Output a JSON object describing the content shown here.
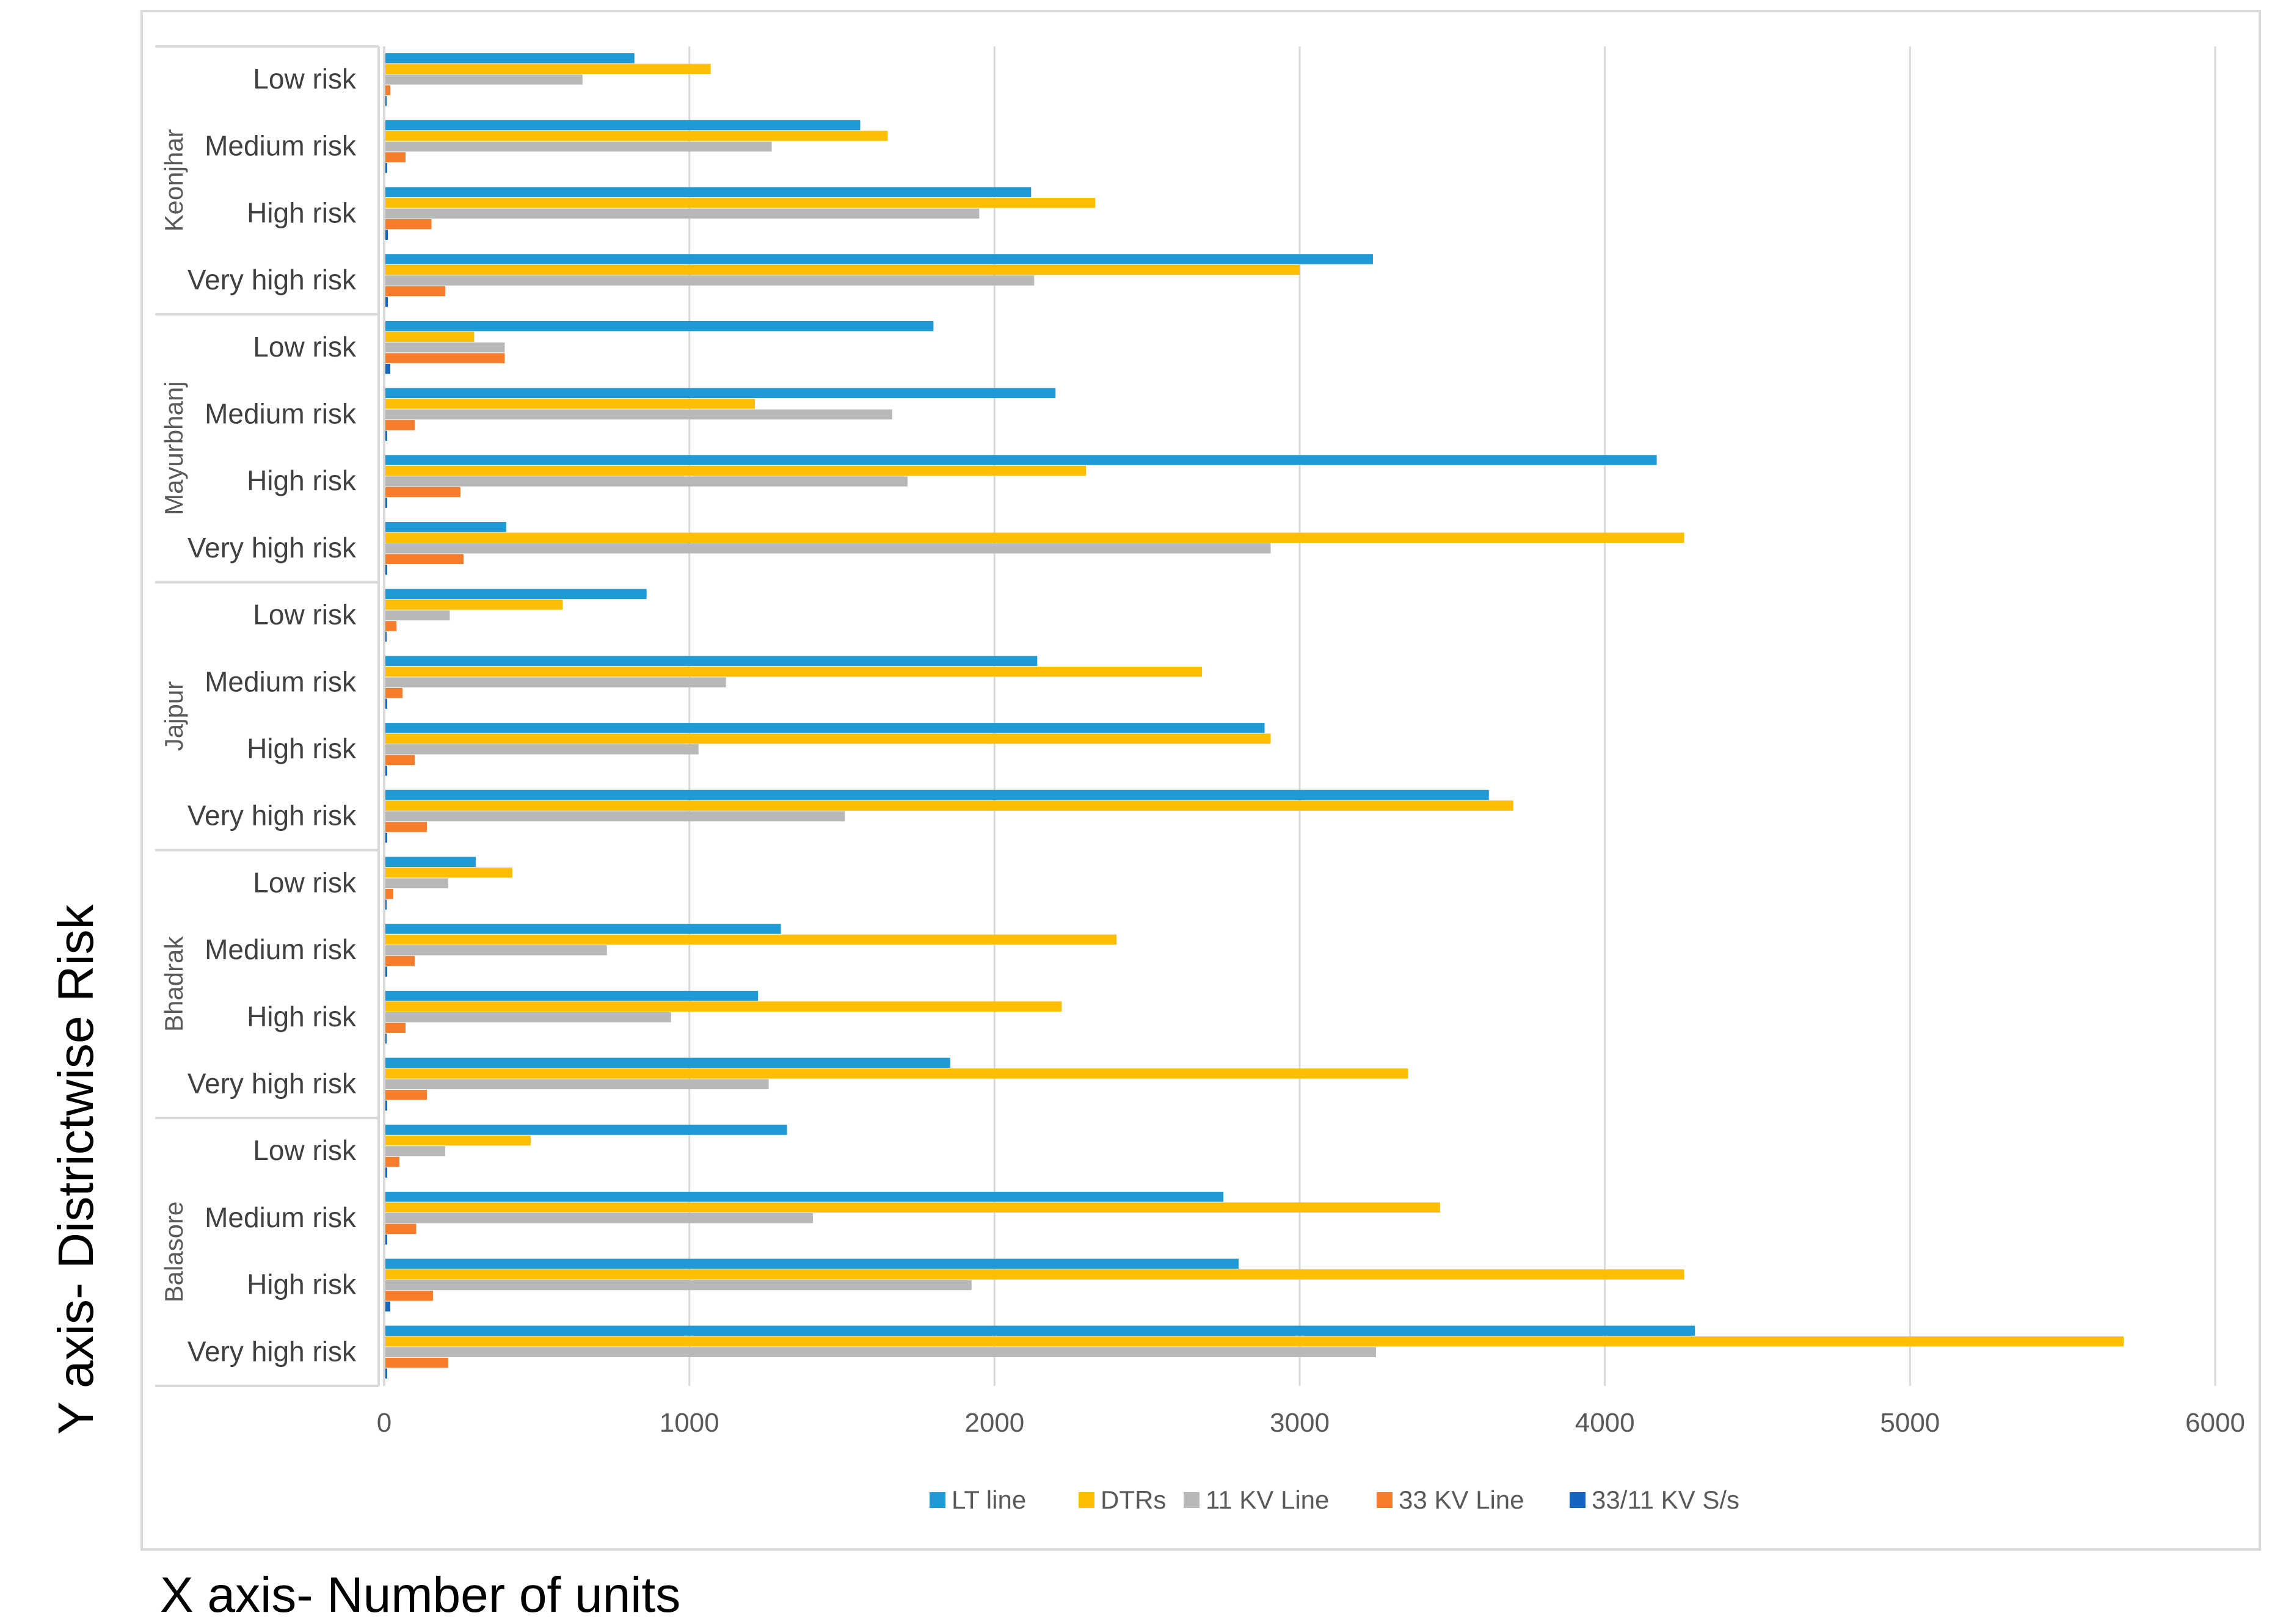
{
  "chart_data": {
    "type": "bar",
    "orientation": "horizontal",
    "xlabel": "X axis- Number of units",
    "ylabel": "Y axis- Districtwise Risk",
    "xlim": [
      0,
      6000
    ],
    "xticks": [
      0,
      1000,
      2000,
      3000,
      4000,
      5000,
      6000
    ],
    "grid": true,
    "legend_position": "bottom",
    "categories": [
      "Low risk",
      "Medium risk",
      "High risk",
      "Very high risk"
    ],
    "groups": [
      {
        "name": "Keonjhar",
        "series": [
          {
            "name": "LT line",
            "values": [
              820,
              1560,
              2120,
              3240
            ]
          },
          {
            "name": "DTRs",
            "values": [
              1070,
              1650,
              2330,
              3000
            ]
          },
          {
            "name": "11 KV Line",
            "values": [
              650,
              1270,
              1950,
              2130
            ]
          },
          {
            "name": "33 KV Line",
            "values": [
              20,
              70,
              155,
              200
            ]
          },
          {
            "name": "33/11 KV S/s",
            "values": [
              8,
              10,
              12,
              12
            ]
          }
        ]
      },
      {
        "name": "Mayurbhanj",
        "series": [
          {
            "name": "LT line",
            "values": [
              1800,
              2200,
              4170,
              400
            ]
          },
          {
            "name": "DTRs",
            "values": [
              295,
              1215,
              2300,
              4260
            ]
          },
          {
            "name": "11 KV Line",
            "values": [
              395,
              1665,
              1715,
              2905
            ]
          },
          {
            "name": "33 KV Line",
            "values": [
              395,
              100,
              250,
              260
            ]
          },
          {
            "name": "33/11 KV S/s",
            "values": [
              20,
              10,
              10,
              10
            ]
          }
        ]
      },
      {
        "name": "Jajpur",
        "series": [
          {
            "name": "LT line",
            "values": [
              860,
              2140,
              2885,
              3620
            ]
          },
          {
            "name": "DTRs",
            "values": [
              585,
              2680,
              2905,
              3700
            ]
          },
          {
            "name": "11 KV Line",
            "values": [
              215,
              1120,
              1030,
              1510
            ]
          },
          {
            "name": "33 KV Line",
            "values": [
              40,
              60,
              100,
              140
            ]
          },
          {
            "name": "33/11 KV S/s",
            "values": [
              8,
              10,
              10,
              10
            ]
          }
        ]
      },
      {
        "name": "Bhadrak",
        "series": [
          {
            "name": "LT line",
            "values": [
              300,
              1300,
              1225,
              1855
            ]
          },
          {
            "name": "DTRs",
            "values": [
              420,
              2400,
              2220,
              3355
            ]
          },
          {
            "name": "11 KV Line",
            "values": [
              210,
              730,
              940,
              1260
            ]
          },
          {
            "name": "33 KV Line",
            "values": [
              30,
              100,
              70,
              140
            ]
          },
          {
            "name": "33/11 KV S/s",
            "values": [
              8,
              10,
              8,
              10
            ]
          }
        ]
      },
      {
        "name": "Balasore",
        "series": [
          {
            "name": "LT line",
            "values": [
              1320,
              2750,
              2800,
              4295
            ]
          },
          {
            "name": "DTRs",
            "values": [
              480,
              3460,
              4260,
              5700
            ]
          },
          {
            "name": "11 KV Line",
            "values": [
              200,
              1405,
              1925,
              3250
            ]
          },
          {
            "name": "33 KV Line",
            "values": [
              50,
              105,
              160,
              210
            ]
          },
          {
            "name": "33/11 KV S/s",
            "values": [
              10,
              10,
              20,
              10
            ]
          }
        ]
      }
    ],
    "legend": [
      {
        "name": "LT line",
        "color": "#209ad4"
      },
      {
        "name": "DTRs",
        "color": "#fbbe00"
      },
      {
        "name": "11 KV Line",
        "color": "#b8b8b8"
      },
      {
        "name": "33 KV Line",
        "color": "#f57d2c"
      },
      {
        "name": "33/11 KV S/s",
        "color": "#1565c0"
      }
    ]
  }
}
